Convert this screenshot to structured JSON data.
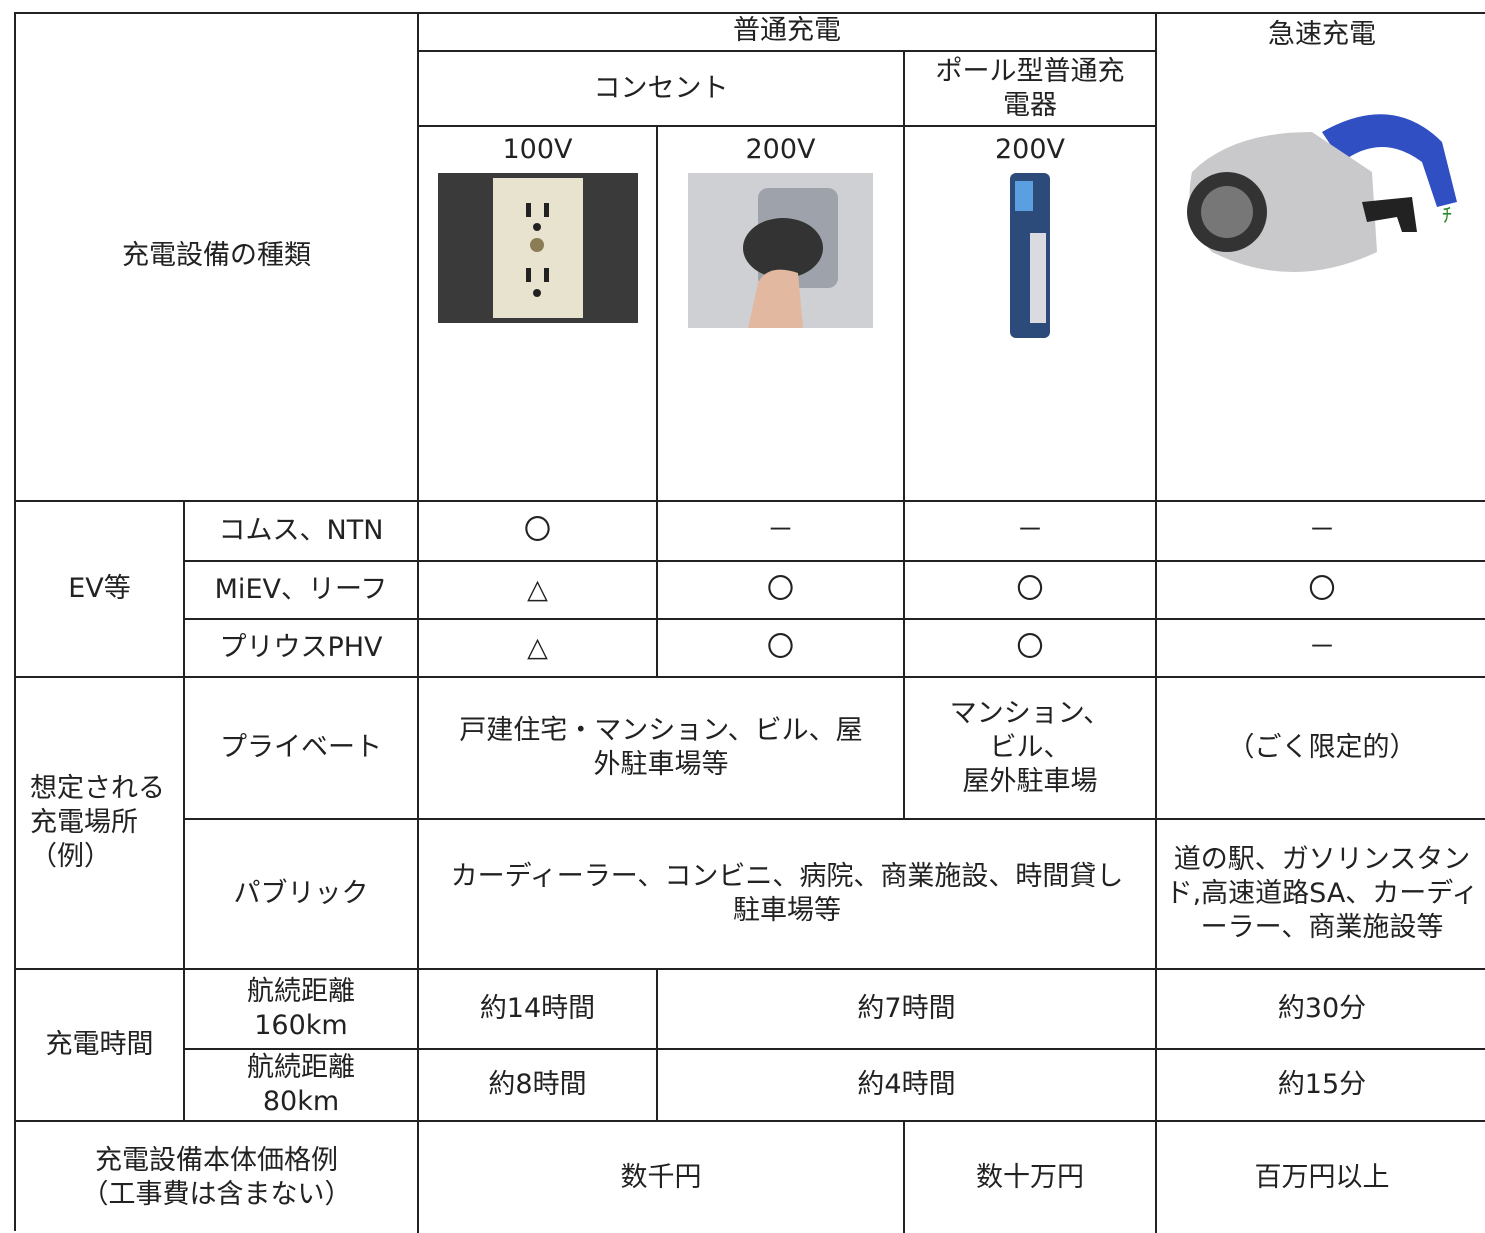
{
  "table": {
    "header": {
      "type_label": "充電設備の種類",
      "normal": "普通充電",
      "outlet": "コンセント",
      "pole": "ポール型普通充電器",
      "quick": "急速充電",
      "v100": "100V",
      "v200_outlet": "200V",
      "v200_pole": "200V"
    },
    "ev": {
      "label": "EV等",
      "rows": [
        {
          "model": "コムス、NTN",
          "cells": [
            "〇",
            "－",
            "－",
            "－"
          ]
        },
        {
          "model": "MiEV、リーフ",
          "cells": [
            "△",
            "〇",
            "〇",
            "〇"
          ]
        },
        {
          "model": "プリウスPHV",
          "cells": [
            "△",
            "〇",
            "〇",
            "－"
          ]
        }
      ]
    },
    "places": {
      "label": "想定される充電場所（例）",
      "private": {
        "label": "プライベート",
        "outlet": "戸建住宅・マンション、ビル、屋外駐車場等",
        "pole": "マンション、\nビル、\n屋外駐車場",
        "quick": "（ごく限定的）"
      },
      "public": {
        "label": "パブリック",
        "normal": "カーディーラー、コンビニ、病院、商業施設、時間貸し駐車場等",
        "quick": "道の駅、ガソリンスタンド,高速道路SA、カーディーラー、商業施設等"
      }
    },
    "time": {
      "label": "充電時間",
      "rows": [
        {
          "range": "航続距離160km",
          "v100": "約14時間",
          "v200": "約7時間",
          "quick": "約30分"
        },
        {
          "range": "航続距離80km",
          "v100": "約8時間",
          "v200": "約4時間",
          "quick": "約15分"
        }
      ]
    },
    "price": {
      "label": "充電設備本体価格例\n（工事費は含まない）",
      "outlet": "数千円",
      "pole": "数十万円",
      "quick": "百万円以上"
    }
  }
}
